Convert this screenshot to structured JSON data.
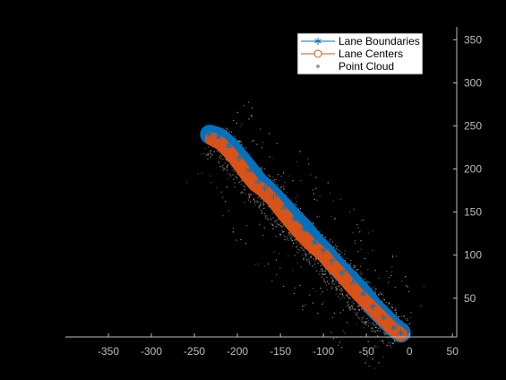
{
  "chart_data": {
    "type": "line",
    "title": "",
    "xlabel": "",
    "ylabel": "",
    "xlim": [
      -400,
      55
    ],
    "ylim": [
      5,
      365
    ],
    "y_axis_location": "right",
    "x_ticks": [
      -350,
      -300,
      -250,
      -200,
      -150,
      -100,
      -50,
      0,
      50
    ],
    "y_ticks": [
      50,
      100,
      150,
      200,
      250,
      300,
      350
    ],
    "grid": false,
    "legend_position": "top-right",
    "colors": {
      "background": "#000000",
      "axis": "#bdbdbd",
      "lane_boundaries": "#0072bd",
      "lane_centers": "#d95319",
      "point_cloud": "#b0aba0"
    },
    "legend": [
      {
        "label": "Lane Boundaries",
        "marker": "asterisk",
        "color": "#0072bd"
      },
      {
        "label": "Lane Centers",
        "marker": "circle",
        "color": "#d95319"
      },
      {
        "label": "Point Cloud",
        "marker": "dot",
        "color": "#9e9e9e"
      }
    ],
    "series": [
      {
        "name": "Lane Boundaries",
        "marker": "asterisk",
        "x": [
          -232,
          -222,
          -210,
          -198,
          -186,
          -176,
          -168,
          -158,
          -146,
          -134,
          -122,
          -110,
          -100,
          -90,
          -78,
          -66,
          -54,
          -42,
          -30,
          -18,
          -10
        ],
        "y": [
          240,
          237,
          227,
          213,
          198,
          185,
          178,
          168,
          155,
          142,
          130,
          115,
          105,
          93,
          80,
          68,
          55,
          40,
          28,
          16,
          10
        ]
      },
      {
        "name": "Lane Centers",
        "marker": "circle",
        "x": [
          -230,
          -220,
          -210,
          -200,
          -190,
          -180,
          -170,
          -160,
          -150,
          -140,
          -130,
          -120,
          -110,
          -100,
          -90,
          -80,
          -70,
          -60,
          -50,
          -40,
          -30,
          -20,
          -10
        ],
        "y": [
          235,
          230,
          220,
          208,
          194,
          182,
          175,
          165,
          152,
          140,
          128,
          118,
          108,
          100,
          88,
          78,
          66,
          55,
          45,
          35,
          25,
          15,
          8
        ]
      }
    ]
  }
}
